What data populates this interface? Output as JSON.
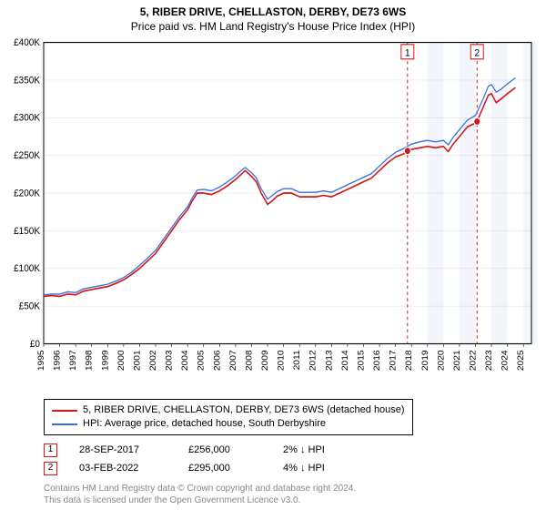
{
  "title_main": "5, RIBER DRIVE, CHELLASTON, DERBY, DE73 6WS",
  "title_sub": "Price paid vs. HM Land Registry's House Price Index (HPI)",
  "chart": {
    "type": "line",
    "background_color": "#ffffff",
    "grid_color": "#ffffff",
    "axis_color": "#000000",
    "x": {
      "lim": [
        1995,
        2025.5
      ],
      "ticks": [
        1995,
        1996,
        1997,
        1998,
        1999,
        2000,
        2001,
        2002,
        2003,
        2004,
        2005,
        2006,
        2007,
        2008,
        2009,
        2010,
        2011,
        2012,
        2013,
        2014,
        2015,
        2016,
        2017,
        2018,
        2019,
        2020,
        2021,
        2022,
        2023,
        2024,
        2025
      ]
    },
    "y": {
      "lim": [
        0,
        400000
      ],
      "ticks": [
        0,
        50000,
        100000,
        150000,
        200000,
        250000,
        300000,
        350000,
        400000
      ],
      "tick_labels": [
        "£0",
        "£50K",
        "£100K",
        "£150K",
        "£200K",
        "£250K",
        "£300K",
        "£350K",
        "£400K"
      ]
    },
    "yearly_shading": {
      "enabled_from": 2018,
      "odd_year_fill": "#f2f5fa",
      "even_year_fill": "#ffffff"
    },
    "series": [
      {
        "name": "price_paid",
        "color": "#d11919",
        "line_width": 1.5,
        "points": [
          [
            1995.0,
            63000
          ],
          [
            1995.5,
            64000
          ],
          [
            1996.0,
            63000
          ],
          [
            1996.5,
            66000
          ],
          [
            1997.0,
            65000
          ],
          [
            1997.5,
            70000
          ],
          [
            1998.0,
            72000
          ],
          [
            1998.5,
            74000
          ],
          [
            1999.0,
            76000
          ],
          [
            1999.5,
            80000
          ],
          [
            2000.0,
            85000
          ],
          [
            2000.5,
            92000
          ],
          [
            2001.0,
            100000
          ],
          [
            2001.5,
            110000
          ],
          [
            2002.0,
            120000
          ],
          [
            2002.5,
            135000
          ],
          [
            2003.0,
            150000
          ],
          [
            2003.5,
            165000
          ],
          [
            2004.0,
            178000
          ],
          [
            2004.3,
            190000
          ],
          [
            2004.6,
            200000
          ],
          [
            2005.0,
            200000
          ],
          [
            2005.5,
            198000
          ],
          [
            2006.0,
            203000
          ],
          [
            2006.5,
            210000
          ],
          [
            2007.0,
            218000
          ],
          [
            2007.3,
            224000
          ],
          [
            2007.6,
            230000
          ],
          [
            2008.0,
            222000
          ],
          [
            2008.3,
            215000
          ],
          [
            2008.6,
            200000
          ],
          [
            2009.0,
            185000
          ],
          [
            2009.3,
            190000
          ],
          [
            2009.6,
            196000
          ],
          [
            2010.0,
            200000
          ],
          [
            2010.5,
            200000
          ],
          [
            2011.0,
            195000
          ],
          [
            2011.5,
            195000
          ],
          [
            2012.0,
            195000
          ],
          [
            2012.5,
            197000
          ],
          [
            2013.0,
            195000
          ],
          [
            2013.5,
            200000
          ],
          [
            2014.0,
            205000
          ],
          [
            2014.5,
            210000
          ],
          [
            2015.0,
            215000
          ],
          [
            2015.5,
            220000
          ],
          [
            2016.0,
            230000
          ],
          [
            2016.5,
            240000
          ],
          [
            2017.0,
            248000
          ],
          [
            2017.5,
            252000
          ],
          [
            2017.75,
            256000
          ],
          [
            2018.0,
            258000
          ],
          [
            2018.5,
            260000
          ],
          [
            2019.0,
            262000
          ],
          [
            2019.5,
            260000
          ],
          [
            2020.0,
            262000
          ],
          [
            2020.3,
            255000
          ],
          [
            2020.6,
            265000
          ],
          [
            2021.0,
            275000
          ],
          [
            2021.5,
            288000
          ],
          [
            2022.0,
            293000
          ],
          [
            2022.1,
            295000
          ],
          [
            2022.5,
            315000
          ],
          [
            2022.8,
            330000
          ],
          [
            2023.0,
            332000
          ],
          [
            2023.3,
            320000
          ],
          [
            2023.6,
            325000
          ],
          [
            2024.0,
            332000
          ],
          [
            2024.5,
            340000
          ]
        ]
      },
      {
        "name": "hpi",
        "color": "#3a6fd8",
        "line_width": 1.2,
        "points": [
          [
            1995.0,
            65000
          ],
          [
            1995.5,
            66000
          ],
          [
            1996.0,
            66000
          ],
          [
            1996.5,
            69000
          ],
          [
            1997.0,
            68000
          ],
          [
            1997.5,
            73000
          ],
          [
            1998.0,
            75000
          ],
          [
            1998.5,
            77000
          ],
          [
            1999.0,
            79000
          ],
          [
            1999.5,
            83000
          ],
          [
            2000.0,
            88000
          ],
          [
            2000.5,
            95000
          ],
          [
            2001.0,
            104000
          ],
          [
            2001.5,
            114000
          ],
          [
            2002.0,
            124000
          ],
          [
            2002.5,
            139000
          ],
          [
            2003.0,
            154000
          ],
          [
            2003.5,
            169000
          ],
          [
            2004.0,
            182000
          ],
          [
            2004.3,
            194000
          ],
          [
            2004.6,
            204000
          ],
          [
            2005.0,
            205000
          ],
          [
            2005.5,
            203000
          ],
          [
            2006.0,
            208000
          ],
          [
            2006.5,
            215000
          ],
          [
            2007.0,
            223000
          ],
          [
            2007.3,
            229000
          ],
          [
            2007.6,
            234000
          ],
          [
            2008.0,
            227000
          ],
          [
            2008.3,
            220000
          ],
          [
            2008.6,
            206000
          ],
          [
            2009.0,
            192000
          ],
          [
            2009.3,
            197000
          ],
          [
            2009.6,
            202000
          ],
          [
            2010.0,
            206000
          ],
          [
            2010.5,
            206000
          ],
          [
            2011.0,
            201000
          ],
          [
            2011.5,
            201000
          ],
          [
            2012.0,
            201000
          ],
          [
            2012.5,
            203000
          ],
          [
            2013.0,
            201000
          ],
          [
            2013.5,
            206000
          ],
          [
            2014.0,
            211000
          ],
          [
            2014.5,
            216000
          ],
          [
            2015.0,
            221000
          ],
          [
            2015.5,
            226000
          ],
          [
            2016.0,
            236000
          ],
          [
            2016.5,
            246000
          ],
          [
            2017.0,
            254000
          ],
          [
            2017.5,
            259000
          ],
          [
            2017.75,
            262000
          ],
          [
            2018.0,
            265000
          ],
          [
            2018.5,
            268000
          ],
          [
            2019.0,
            270000
          ],
          [
            2019.5,
            268000
          ],
          [
            2020.0,
            270000
          ],
          [
            2020.3,
            264000
          ],
          [
            2020.6,
            274000
          ],
          [
            2021.0,
            284000
          ],
          [
            2021.5,
            297000
          ],
          [
            2022.0,
            303000
          ],
          [
            2022.5,
            326000
          ],
          [
            2022.8,
            342000
          ],
          [
            2023.0,
            344000
          ],
          [
            2023.3,
            334000
          ],
          [
            2023.6,
            338000
          ],
          [
            2024.0,
            345000
          ],
          [
            2024.5,
            353000
          ]
        ]
      }
    ],
    "markers": [
      {
        "num": "1",
        "x": 2017.75,
        "y": 256000,
        "box_border": "#d11919",
        "box_fill": "#ffffff",
        "line_color": "#d11919",
        "line_dash": "3,3"
      },
      {
        "num": "2",
        "x": 2022.1,
        "y": 295000,
        "box_border": "#d11919",
        "box_fill": "#ffffff",
        "line_color": "#d11919",
        "line_dash": "3,3"
      }
    ]
  },
  "legend": {
    "entries": [
      {
        "color": "#d11919",
        "label": "5, RIBER DRIVE, CHELLASTON, DERBY, DE73 6WS (detached house)"
      },
      {
        "color": "#3a6fd8",
        "label": "HPI: Average price, detached house, South Derbyshire"
      }
    ]
  },
  "marker_table": [
    {
      "num": "1",
      "border": "#d11919",
      "date": "28-SEP-2017",
      "price": "£256,000",
      "delta": "2% ↓ HPI"
    },
    {
      "num": "2",
      "border": "#d11919",
      "date": "03-FEB-2022",
      "price": "£295,000",
      "delta": "4% ↓ HPI"
    }
  ],
  "footer": {
    "line1": "Contains HM Land Registry data © Crown copyright and database right 2024.",
    "line2": "This data is licensed under the Open Government Licence v3.0."
  }
}
